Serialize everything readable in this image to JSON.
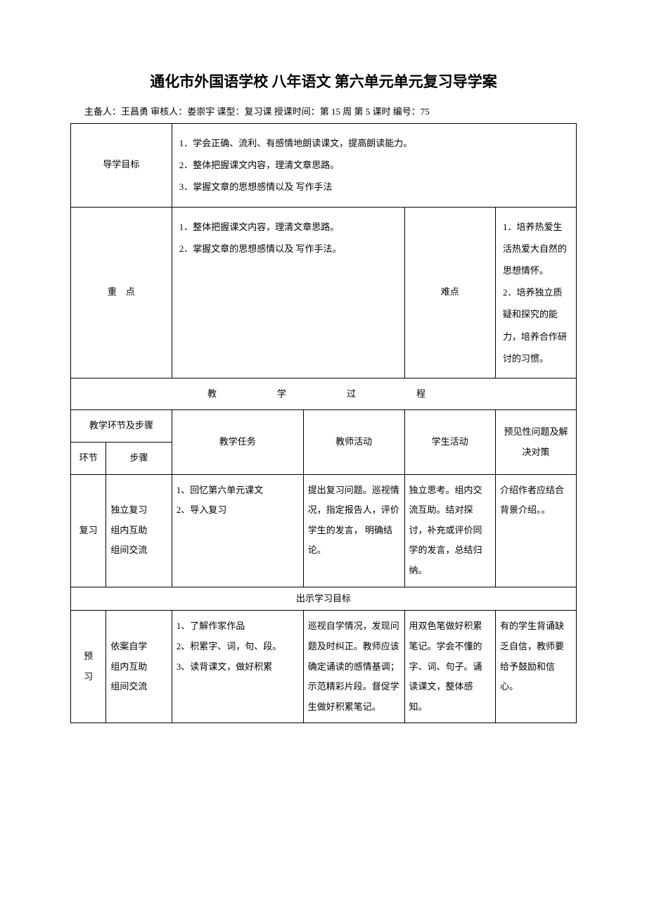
{
  "title": "通化市外国语学校 八年语文 第六单元单元复习导学案",
  "meta": "主备人：王昌勇  审核人：娄崇宇   课型：复习课   授课时间：第 15 周 第 5 课时   编号：75",
  "section": {
    "goals_label": "导学目标",
    "goals_text": "1．学会正确、流利、有感情地朗读课文，提高朗读能力。\n2．整体把握课文内容，理清文章思路。\n3．掌握文章的思想感情以及 写作手法",
    "keypoints_label": "重　点",
    "keypoints_text": "1．整体把握课文内容，理清文章思路。\n2．掌握文章的思想感情以及 写作手法。",
    "difficulties_label": "难点",
    "difficulties_text": "1．培养热爱生活热爱大自然的思想情怀。\n2．培养独立质疑和探究的能力，培养合作研讨的习惯。"
  },
  "process_header": "教　　学　　过　　程",
  "headers": {
    "stage_steps": "教学环节及步骤",
    "stage": "环节",
    "steps": "步骤",
    "task": "教学任务",
    "teacher": "教师活动",
    "student": "学生活动",
    "issues": "预见性问题及解决对策"
  },
  "rows": {
    "review": {
      "stage": "复习",
      "steps": "独立复习\n组内互助\n组间交流",
      "task": "1、回忆第六单元课文\n2、导入复习",
      "teacher": "提出复习问题。巡视情况，指定报告人，评价学生的发言， 明确结论。",
      "student": "独立思考。组内交流互助。结对探讨，补充或评价同学的发言，总结归纳。",
      "issues": "介绍作者应结合背景介绍。。"
    },
    "show_goals": "出示学习目标",
    "preview": {
      "stage": "预　习",
      "steps": "依案自学\n组内互助\n组间交流",
      "task": "1、了解作家作品\n2、积累字、词，句、段。\n3、读背课文，做好积累",
      "teacher": "巡视自学情况，发现问题及时纠正。教师应该确定诵读的感情基调；示范精彩片段。督促学生做好积累笔记。",
      "student": "用双色笔做好积累笔记。学会不懂的字、词、句子。诵读课文，整体感知。",
      "issues": "有的学生背诵缺乏自信，教师要给予鼓励和信心。"
    }
  }
}
